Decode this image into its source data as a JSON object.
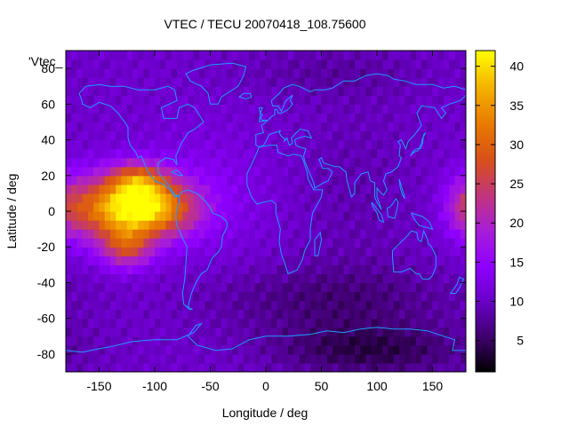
{
  "chart_data": {
    "type": "heatmap",
    "title": "VTEC / TECU 20070418_108.75600",
    "xlabel": "Longitude / deg",
    "ylabel": "Latitude / deg",
    "key_label": "'Vtec_",
    "xlim": [
      -180,
      180
    ],
    "ylim": [
      -90,
      90
    ],
    "x_ticks": [
      -150,
      -100,
      -50,
      0,
      50,
      100,
      150
    ],
    "y_ticks": [
      -80,
      -60,
      -40,
      -20,
      0,
      20,
      40,
      60,
      80
    ],
    "colorbar": {
      "range": [
        1,
        42
      ],
      "ticks": [
        5,
        10,
        15,
        20,
        25,
        30,
        35,
        40
      ],
      "palette": [
        "#000000",
        "#3b0066",
        "#6a00c8",
        "#8f00ff",
        "#a81ed6",
        "#c2357c",
        "#d8501a",
        "#e87a00",
        "#f6b400",
        "#ffff00"
      ]
    },
    "grid": false,
    "legend": "top-left",
    "colors": {
      "coastline": "#1e9bff",
      "frame": "#000000"
    }
  }
}
